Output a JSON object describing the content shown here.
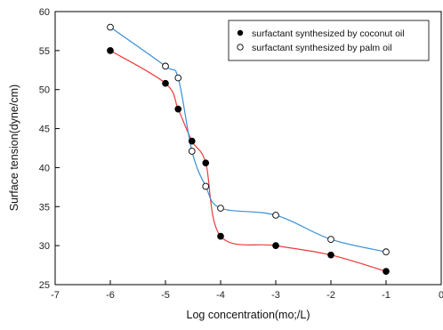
{
  "chart_data": {
    "type": "scatter",
    "title": "",
    "xlabel": "Log concentration(mo;/L)",
    "ylabel": "Surface tension(dyne/cm)",
    "xlim": [
      -7,
      0
    ],
    "ylim": [
      25,
      60
    ],
    "xticks": [
      "-7",
      "-6",
      "-5",
      "-4",
      "-3",
      "-2",
      "-1",
      "0"
    ],
    "yticks": [
      "25",
      "30",
      "35",
      "40",
      "45",
      "50",
      "55",
      "60"
    ],
    "grid": false,
    "legend_position": "top-right",
    "series": [
      {
        "name": "surfactant synthesized by coconut oil",
        "marker": "filled-circle",
        "fit_color": "#ee3b3b",
        "x": [
          -6.0,
          -5.0,
          -4.77,
          -4.52,
          -4.27,
          -4.0,
          -3.0,
          -2.0,
          -1.0
        ],
        "y": [
          55.0,
          50.8,
          47.5,
          43.4,
          40.6,
          31.2,
          30.0,
          28.8,
          26.7
        ]
      },
      {
        "name": "surfactant synthesized by palm oil",
        "marker": "open-circle",
        "fit_color": "#3a8fd6",
        "x": [
          -6.0,
          -5.0,
          -4.77,
          -4.52,
          -4.27,
          -4.0,
          -3.0,
          -2.0,
          -1.0
        ],
        "y": [
          58.0,
          53.0,
          51.5,
          42.1,
          37.6,
          34.8,
          33.9,
          30.8,
          29.2
        ]
      }
    ]
  }
}
